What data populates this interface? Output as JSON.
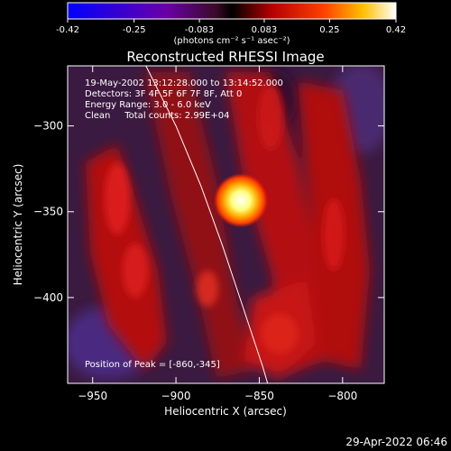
{
  "colorbar": {
    "ticks": [
      "-0.42",
      "-0.25",
      "-0.083",
      "0.083",
      "0.25",
      "0.42"
    ],
    "unit_label": "(photons cm⁻² s⁻¹ asec⁻²)",
    "range": [
      -0.42,
      0.42
    ]
  },
  "title": "Reconstructed RHESSI Image",
  "info": {
    "line1": "19-May-2002 13:12:28.000 to 13:14:52.000",
    "line2": "Detectors: 3F 4F 5F 6F 7F 8F, Att 0",
    "line3": "Energy Range: 3.0 - 6.0 keV",
    "line4": "Clean     Total counts: 2.99E+04"
  },
  "peak_text": "Position of Peak = [-860,-345]",
  "xlabel": "Heliocentric X (arcsec)",
  "ylabel": "Heliocentric Y (arcsec)",
  "timestamp": "29-Apr-2022 06:46",
  "chart_data": {
    "type": "heatmap",
    "xlim": [
      -965,
      -775
    ],
    "ylim": [
      -450,
      -265
    ],
    "xticks": [
      -950,
      -900,
      -850,
      -800
    ],
    "xtick_labels": [
      "−950",
      "−900",
      "−850",
      "−800"
    ],
    "yticks": [
      -400,
      -350,
      -300
    ],
    "ytick_labels": [
      "−400",
      "−350",
      "−300"
    ],
    "peak": {
      "x": -860,
      "y": -345,
      "value": 0.42
    },
    "limb_curve": [
      [
        -918,
        -265
      ],
      [
        -900,
        -300
      ],
      [
        -885,
        -335
      ],
      [
        -872,
        -370
      ],
      [
        -860,
        -405
      ],
      [
        -848,
        -440
      ],
      [
        -845,
        -450
      ]
    ],
    "color_stops": [
      [
        0.0,
        "#0000ff"
      ],
      [
        0.3,
        "#6a00a8"
      ],
      [
        0.45,
        "#3c0a28"
      ],
      [
        0.5,
        "#000000"
      ],
      [
        0.62,
        "#b40000"
      ],
      [
        0.78,
        "#ff4000"
      ],
      [
        0.9,
        "#ffc000"
      ],
      [
        1.0,
        "#ffffff"
      ]
    ]
  }
}
